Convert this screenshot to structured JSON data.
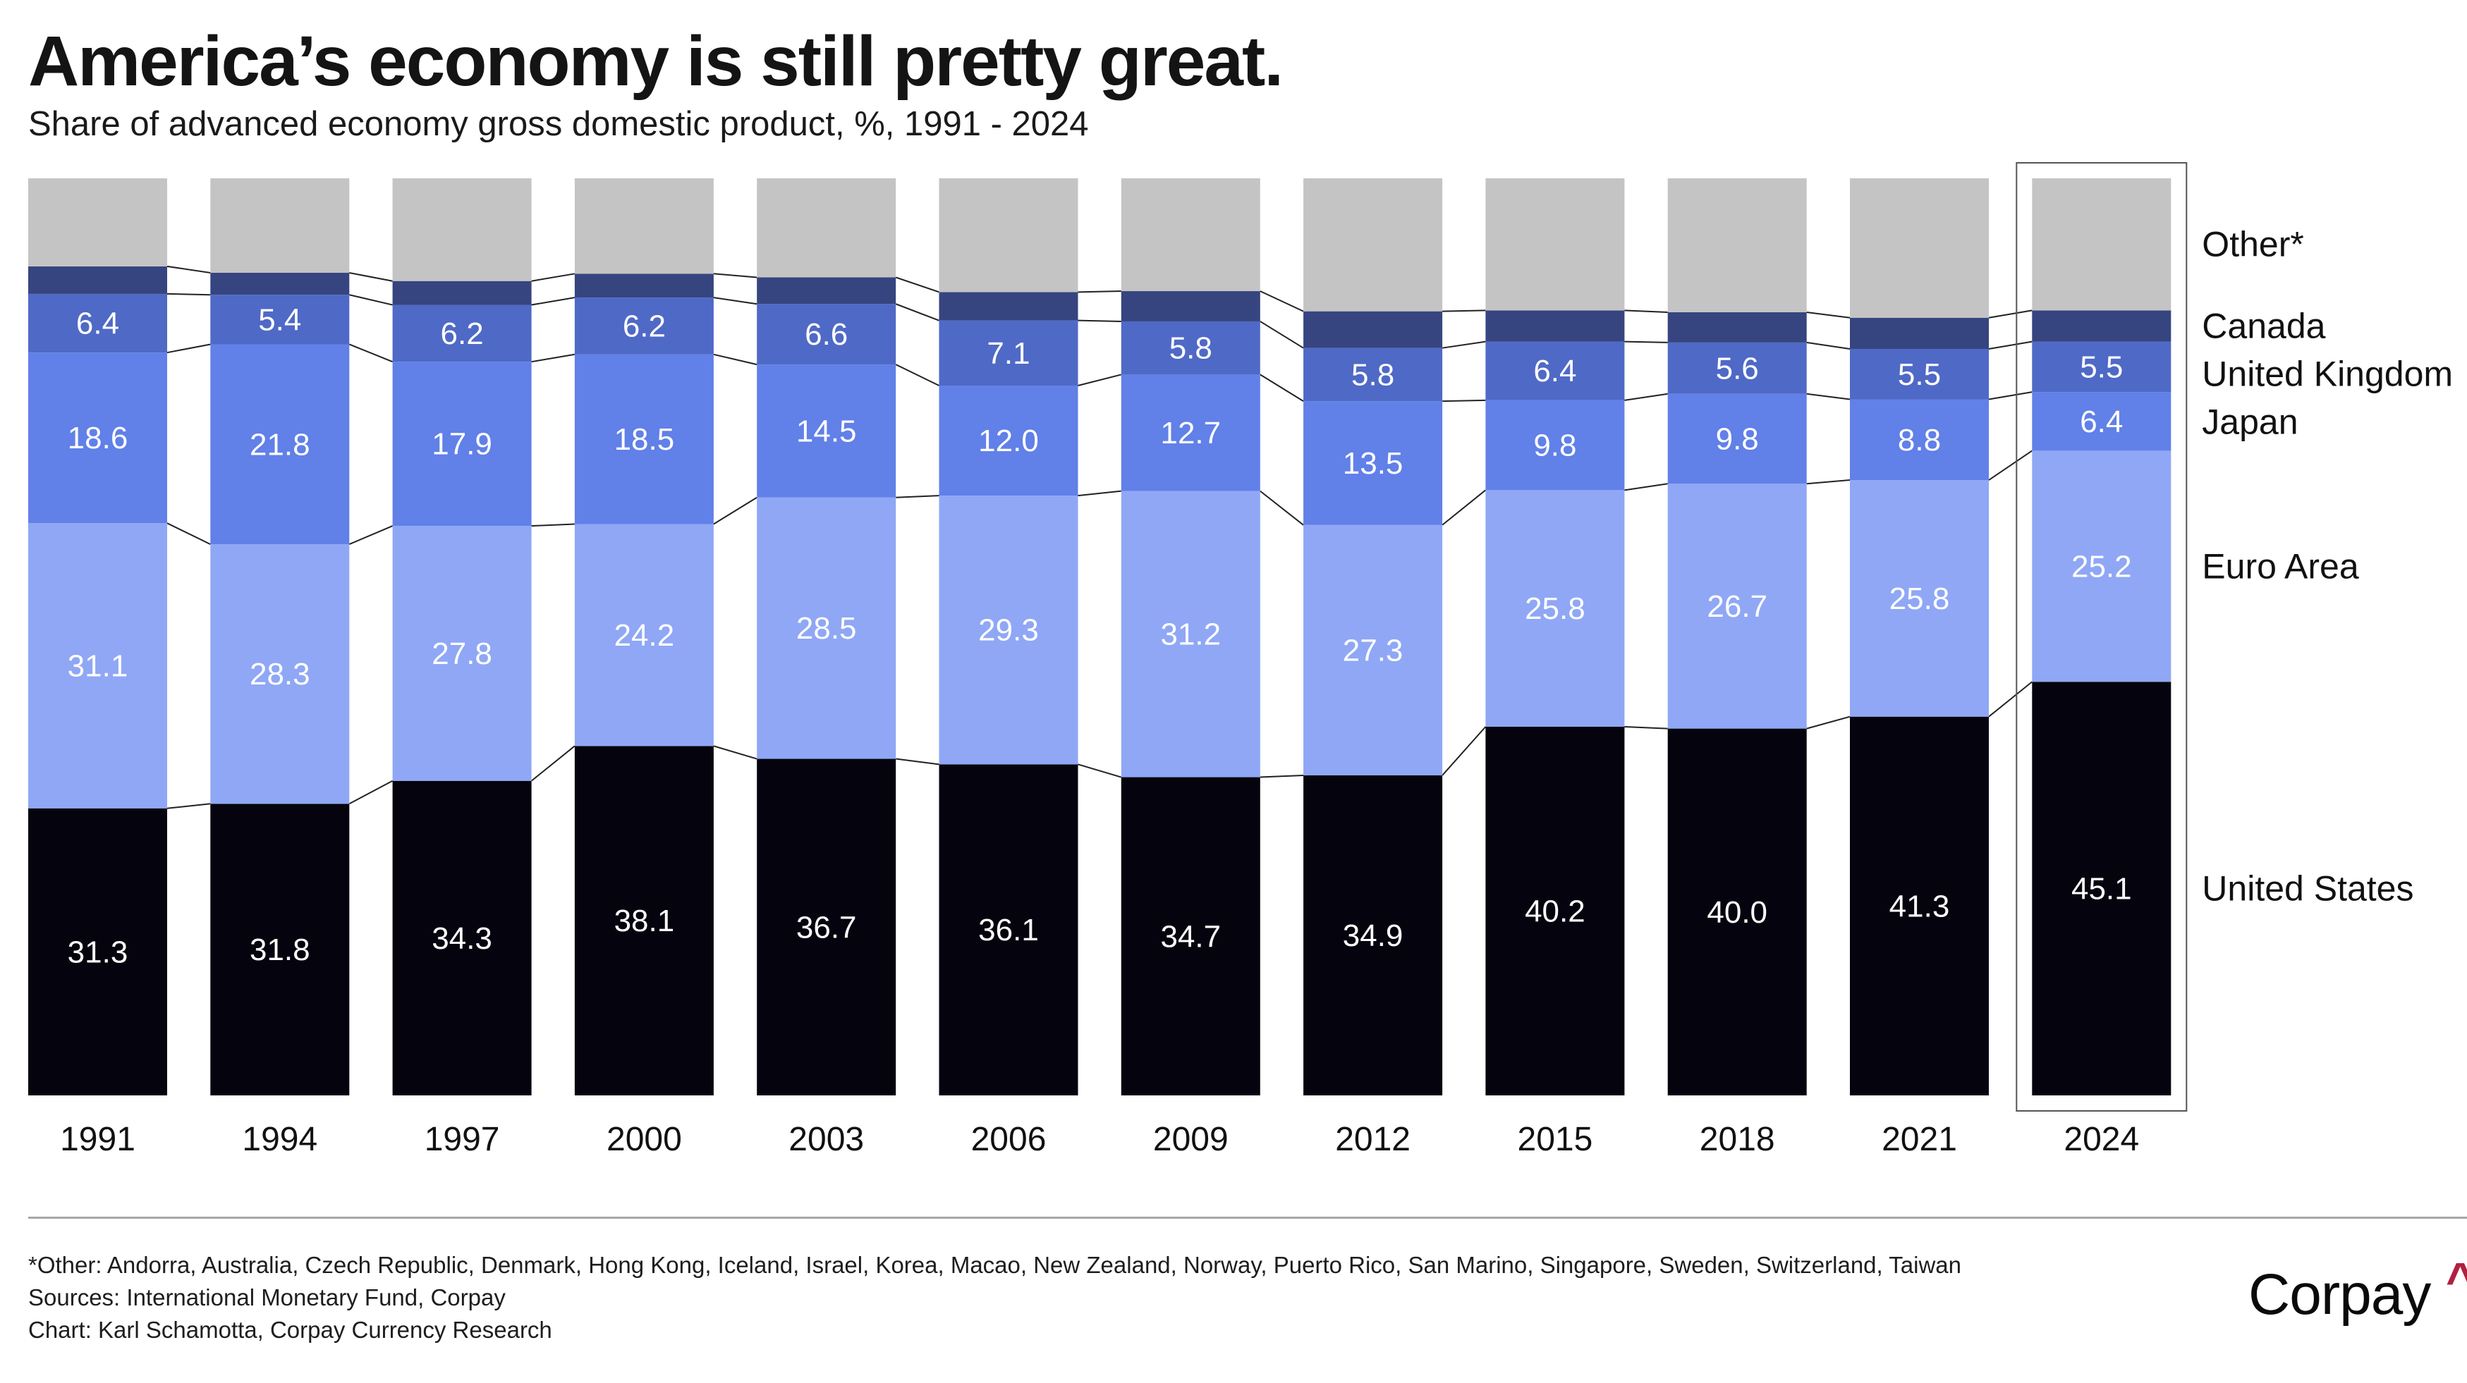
{
  "header": {
    "title": "America’s economy is still pretty great.",
    "subtitle": "Share of advanced economy gross domestic product, %, 1991 - 2024"
  },
  "chart_data": {
    "type": "bar",
    "stacked": true,
    "title": "America’s economy is still pretty great.",
    "subtitle": "Share of advanced economy gross domestic product, %, 1991 - 2024",
    "xlabel": "",
    "ylabel": "Share of advanced economy GDP, %",
    "ylim": [
      0,
      100
    ],
    "grid": false,
    "legend_position": "right (direct labels)",
    "highlighted_category": "2024",
    "categories": [
      "1991",
      "1994",
      "1997",
      "2000",
      "2003",
      "2006",
      "2009",
      "2012",
      "2015",
      "2018",
      "2021",
      "2024"
    ],
    "series": [
      {
        "name": "United States",
        "color": "#05040e",
        "label_shown": true,
        "values": [
          31.3,
          31.8,
          34.3,
          38.1,
          36.7,
          36.1,
          34.7,
          34.9,
          40.2,
          40.0,
          41.3,
          45.1
        ]
      },
      {
        "name": "Euro Area",
        "color": "#8fa7f5",
        "label_shown": true,
        "values": [
          31.1,
          28.3,
          27.8,
          24.2,
          28.5,
          29.3,
          31.2,
          27.3,
          25.8,
          26.7,
          25.8,
          25.2
        ]
      },
      {
        "name": "Japan",
        "color": "#6180e8",
        "label_shown": true,
        "values": [
          18.6,
          21.8,
          17.9,
          18.5,
          14.5,
          12.0,
          12.7,
          13.5,
          9.8,
          9.8,
          8.8,
          6.4
        ]
      },
      {
        "name": "United Kingdom",
        "color": "#4f69c6",
        "label_shown": true,
        "values": [
          6.4,
          5.4,
          6.2,
          6.2,
          6.6,
          7.1,
          5.8,
          5.8,
          6.4,
          5.6,
          5.5,
          5.5
        ]
      },
      {
        "name": "Canada",
        "color": "#36457f",
        "label_shown": false,
        "values": [
          3.0,
          2.4,
          2.6,
          2.6,
          2.9,
          3.1,
          3.3,
          4.0,
          3.4,
          3.3,
          3.4,
          3.4
        ]
      },
      {
        "name": "Other*",
        "color": "#c4c4c4",
        "label_shown": false,
        "values": [
          9.6,
          10.3,
          11.2,
          10.4,
          10.8,
          12.4,
          12.3,
          14.5,
          14.4,
          14.6,
          15.2,
          14.4
        ]
      }
    ],
    "legend": [
      "Other*",
      "Canada",
      "United Kingdom",
      "Japan",
      "Euro Area",
      "United States"
    ]
  },
  "footer": {
    "note": "*Other: Andorra, Australia, Czech Republic, Denmark, Hong Kong, Iceland, Israel, Korea, Macao, New Zealand, Norway, Puerto Rico, San Marino, Singapore, Sweden, Switzerland, Taiwan",
    "sources": "Sources: International Monetary Fund, Corpay",
    "credit": "Chart: Karl Schamotta, Corpay Currency Research",
    "logo_text": "Corpay",
    "logo_caret": "^",
    "logo_caret_color": "#b0203f"
  }
}
